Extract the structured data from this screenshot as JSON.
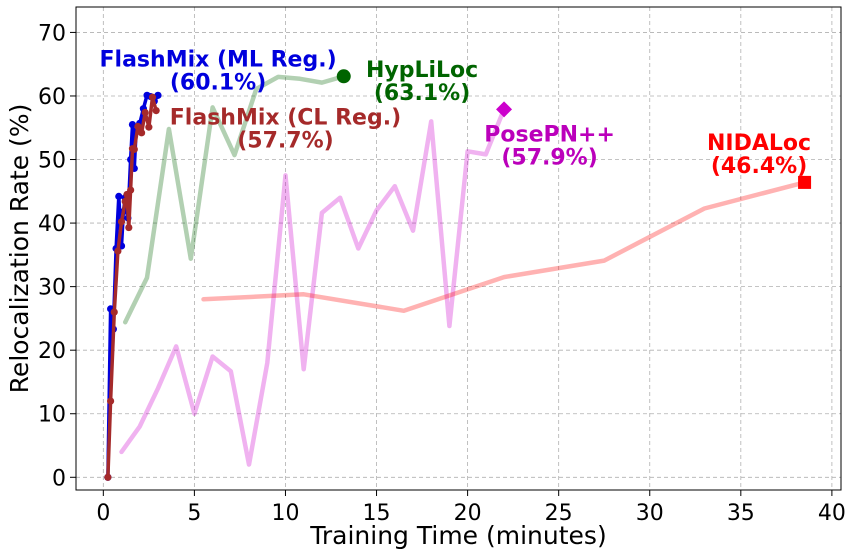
{
  "chart_data": {
    "type": "line",
    "title": "",
    "xlabel": "Training Time (minutes)",
    "ylabel": "Relocalization Rate (%)",
    "xlim": [
      -1.5,
      40.5
    ],
    "ylim": [
      -2,
      74
    ],
    "xticks": [
      0,
      5,
      10,
      15,
      20,
      25,
      30,
      35,
      40
    ],
    "yticks": [
      0,
      10,
      20,
      30,
      40,
      50,
      60,
      70
    ],
    "xtick_labels": [
      "0",
      "5",
      "10",
      "15",
      "20",
      "25",
      "30",
      "35",
      "40"
    ],
    "ytick_labels": [
      "0",
      "10",
      "20",
      "30",
      "40",
      "50",
      "60",
      "70"
    ],
    "grid": true,
    "series": [
      {
        "name": "PosePN++",
        "color": "#cc00cc",
        "alpha": 0.3,
        "marker": "none",
        "x": [
          1.0,
          2.0,
          3.0,
          4.0,
          5.0,
          6.0,
          7.0,
          8.0,
          9.0,
          10.0,
          11.0,
          12.0,
          13.0,
          14.0,
          15.0,
          16.0,
          17.0,
          18.0,
          19.0,
          20.0,
          21.0,
          22.0
        ],
        "y": [
          4,
          8,
          14,
          20.6,
          10,
          19,
          16.7,
          2,
          18,
          47.5,
          17,
          41.6,
          44,
          36,
          42,
          45.8,
          38.8,
          56,
          23.8,
          51.3,
          50.8,
          57.9
        ]
      },
      {
        "name": "HypLiLoc",
        "color": "#006400",
        "alpha": 0.3,
        "marker": "none",
        "x": [
          1.2,
          2.4,
          3.6,
          4.8,
          6.0,
          7.2,
          8.4,
          9.6,
          10.8,
          12.0,
          13.2
        ],
        "y": [
          24.4,
          31.4,
          54.8,
          34.4,
          58.2,
          50.7,
          61.1,
          63,
          62.7,
          62.1,
          63.1
        ]
      },
      {
        "name": "NIDALoc",
        "color": "#ff0000",
        "alpha": 0.3,
        "marker": "none",
        "x": [
          5.5,
          11,
          16.5,
          22,
          27.5,
          33,
          38.5
        ],
        "y": [
          28,
          28.8,
          26.2,
          31.5,
          34.1,
          42.3,
          46.4
        ]
      },
      {
        "name": "FlashMix (ML Reg.)",
        "color": "#0000dd",
        "alpha": 1,
        "marker": "o",
        "x": [
          0.25,
          0.4,
          0.55,
          0.7,
          0.85,
          1.0,
          1.1,
          1.2,
          1.35,
          1.5,
          1.6,
          1.7,
          1.8,
          2.0,
          2.2,
          2.4,
          2.6,
          2.8,
          3.0
        ],
        "y": [
          0,
          26.5,
          23.3,
          36,
          44.2,
          36.4,
          41.8,
          44,
          40.8,
          50,
          55.5,
          48.6,
          54.5,
          55.7,
          58,
          60.1,
          59.9,
          59.2,
          60.1
        ]
      },
      {
        "name": "FlashMix (CL Reg.)",
        "color": "#a52a2a",
        "alpha": 1,
        "marker": "o",
        "x": [
          0.25,
          0.4,
          0.6,
          0.8,
          1.0,
          1.2,
          1.3,
          1.4,
          1.5,
          1.6,
          1.7,
          1.9,
          2.1,
          2.3,
          2.5,
          2.7,
          2.9
        ],
        "y": [
          0,
          12,
          26,
          35.6,
          40.2,
          43.4,
          44.5,
          39.3,
          45.2,
          51.7,
          51.6,
          55.2,
          54.2,
          57.4,
          55.1,
          59.8,
          57.7
        ]
      }
    ],
    "endpoints": [
      {
        "name": "HypLiLoc",
        "x": 13.2,
        "y": 63.1,
        "marker": "circle",
        "color": "#006400"
      },
      {
        "name": "PosePN++",
        "x": 22.0,
        "y": 57.9,
        "marker": "diamond",
        "color": "#cc00cc"
      },
      {
        "name": "NIDALoc",
        "x": 38.5,
        "y": 46.4,
        "marker": "square",
        "color": "#ff0000"
      }
    ],
    "annotations": [
      {
        "lines": [
          "FlashMix (ML Reg.)",
          "(60.1%)"
        ],
        "color": "#0000dd",
        "x": 6.3,
        "y": 64.6
      },
      {
        "lines": [
          "FlashMix (CL Reg.)",
          "(57.7%)"
        ],
        "color": "#a52a2a",
        "x": 10.0,
        "y": 55.5
      },
      {
        "lines": [
          "HypLiLoc",
          "(63.1%)"
        ],
        "color": "#006400",
        "x": 17.5,
        "y": 63.0
      },
      {
        "lines": [
          "PosePN++",
          "(57.9%)"
        ],
        "color": "#bb00bb",
        "x": 24.5,
        "y": 52.8
      },
      {
        "lines": [
          "NIDALoc",
          "(46.4%)"
        ],
        "color": "#ff0000",
        "x": 36.0,
        "y": 51.5
      }
    ]
  }
}
